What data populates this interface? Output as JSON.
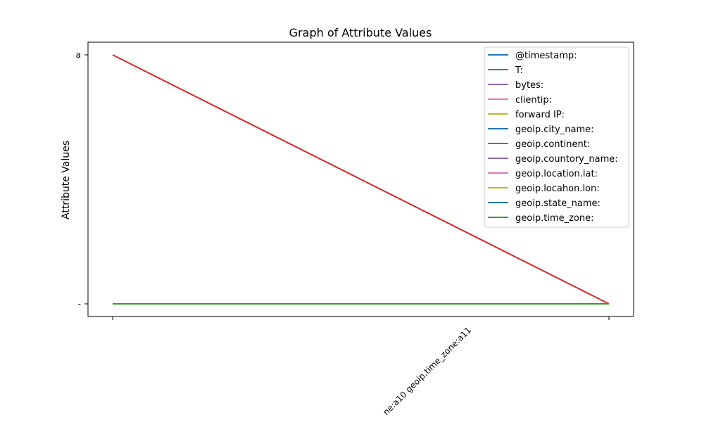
{
  "chart_data": {
    "type": "line",
    "title": "Graph of Attribute Values",
    "xlabel": "",
    "ylabel": "Attribute Values",
    "x_categories": [
      "",
      "...ne:a10 geoip.time_zone:a11"
    ],
    "x_tick_labels": [
      "",
      "ne:a10 geoip.time_zone:a11"
    ],
    "y_categories": [
      "",
      "a"
    ],
    "y_tick_labels": [
      "-",
      "a"
    ],
    "legend_position": "top-right",
    "grid": false,
    "series": [
      {
        "name": "@timestamp:",
        "color": "#1f77b4",
        "values": [
          "",
          ""
        ]
      },
      {
        "name": "T:",
        "color": "#2ca02c",
        "values": [
          "",
          ""
        ]
      },
      {
        "name": "bytes:",
        "color": "#9467bd",
        "values": [
          "",
          ""
        ]
      },
      {
        "name": "clientip:",
        "color": "#e377c2",
        "values": [
          "",
          ""
        ]
      },
      {
        "name": "forward IP:",
        "color": "#bcbd22",
        "values": [
          "",
          ""
        ]
      },
      {
        "name": "geoip.city_name:",
        "color": "#1f77b4",
        "values": [
          "",
          ""
        ]
      },
      {
        "name": "geoip.continent:",
        "color": "#2ca02c",
        "values": [
          "",
          ""
        ]
      },
      {
        "name": "geoip.countory_name:",
        "color": "#9467bd",
        "values": [
          "",
          ""
        ]
      },
      {
        "name": "geoip.location.lat:",
        "color": "#e377c2",
        "values": [
          "",
          ""
        ]
      },
      {
        "name": "geoip.locahon.lon:",
        "color": "#bcbd22",
        "values": [
          "",
          ""
        ]
      },
      {
        "name": "geoip.state_name:",
        "color": "#1f77b4",
        "values": [
          "",
          ""
        ]
      },
      {
        "name": "geoip.time_zone:",
        "color": "#2ca02c",
        "values": [
          "",
          ""
        ]
      },
      {
        "name": "",
        "color": "#d62728",
        "values": [
          "a",
          ""
        ],
        "in_legend": false
      },
      {
        "name": "",
        "color": "#2ca02c",
        "values": [
          "",
          ""
        ],
        "in_legend": false
      }
    ]
  }
}
